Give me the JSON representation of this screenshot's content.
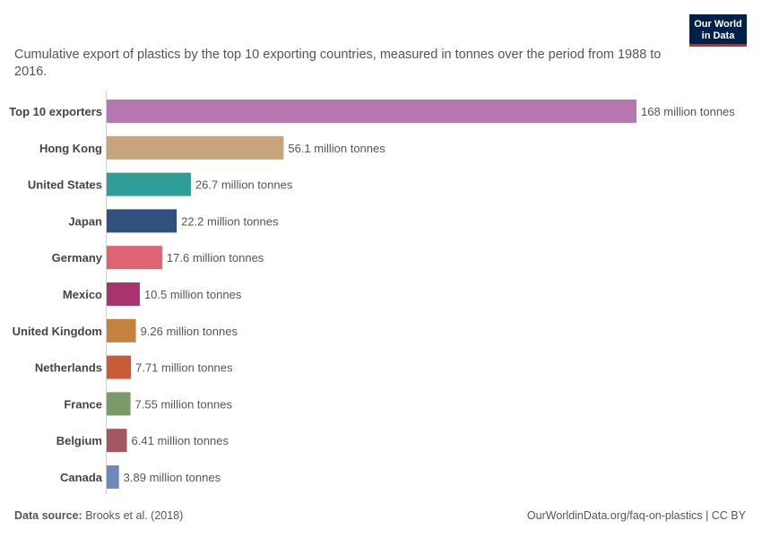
{
  "header": {
    "subtitle": "Cumulative export of plastics by the top 10 exporting countries, measured in tonnes over the period from 1988 to 2016.",
    "logo_line1": "Our World",
    "logo_line2": "in Data"
  },
  "footer": {
    "source_label": "Data source:",
    "source_value": "Brooks et al. (2018)",
    "link": "OurWorldinData.org/faq-on-plastics | CC BY"
  },
  "chart_data": {
    "type": "bar",
    "orientation": "horizontal",
    "categories": [
      "Top 10 exporters",
      "Hong Kong",
      "United States",
      "Japan",
      "Germany",
      "Mexico",
      "United Kingdom",
      "Netherlands",
      "France",
      "Belgium",
      "Canada"
    ],
    "values": [
      168000000,
      56100000,
      26700000,
      22200000,
      17600000,
      10500000,
      9260000,
      7710000,
      7550000,
      6410000,
      3890000
    ],
    "value_labels": [
      "168 million tonnes",
      "56.1 million tonnes",
      "26.7 million tonnes",
      "22.2 million tonnes",
      "17.6 million tonnes",
      "10.5 million tonnes",
      "9.26 million tonnes",
      "7.71 million tonnes",
      "7.55 million tonnes",
      "6.41 million tonnes",
      "3.89 million tonnes"
    ],
    "colors": [
      "#b777b1",
      "#c8a47d",
      "#2e9e96",
      "#30507e",
      "#df6472",
      "#a9336d",
      "#c58140",
      "#c85b38",
      "#7a9a68",
      "#a55663",
      "#6f87b9"
    ],
    "unit": "tonnes",
    "xlim": [
      0,
      168000000
    ],
    "grid": false,
    "legend": "none"
  }
}
